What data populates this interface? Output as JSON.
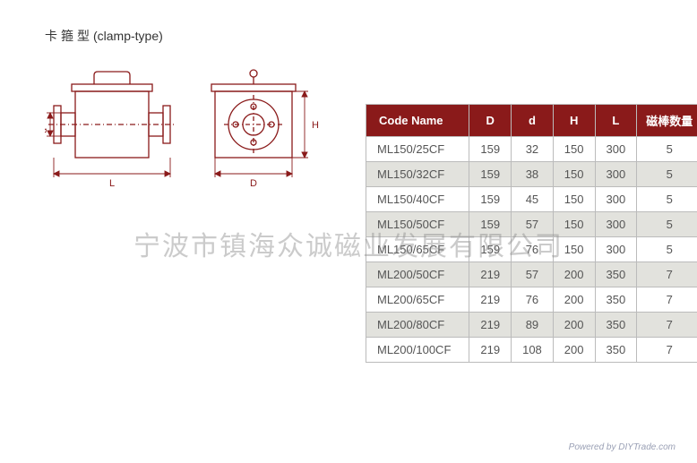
{
  "title": {
    "cn": "卡箍型",
    "en": "(clamp-type)"
  },
  "watermark": "宁波市镇海众诚磁业发展有限公司",
  "footer": {
    "prefix": "Powered by ",
    "brand": "DIYTrade.com"
  },
  "diagram": {
    "stroke": "#8a1a1a",
    "label_color": "#8a1a1a",
    "labels": {
      "L": "L",
      "d": "d",
      "D": "D",
      "H": "H"
    }
  },
  "table": {
    "header_bg": "#8a1a1a",
    "header_fg": "#ffffff",
    "alt_bg": "#e2e2dd",
    "border": "#bbbbbb",
    "columns": [
      {
        "key": "code",
        "label": "Code Name"
      },
      {
        "key": "D",
        "label": "D"
      },
      {
        "key": "d",
        "label": "d"
      },
      {
        "key": "H",
        "label": "H"
      },
      {
        "key": "L",
        "label": "L"
      },
      {
        "key": "bars",
        "label": "磁棒数量"
      }
    ],
    "rows": [
      {
        "code": "ML150/25CF",
        "D": "159",
        "d": "32",
        "H": "150",
        "L": "300",
        "bars": "5"
      },
      {
        "code": "ML150/32CF",
        "D": "159",
        "d": "38",
        "H": "150",
        "L": "300",
        "bars": "5"
      },
      {
        "code": "ML150/40CF",
        "D": "159",
        "d": "45",
        "H": "150",
        "L": "300",
        "bars": "5"
      },
      {
        "code": "ML150/50CF",
        "D": "159",
        "d": "57",
        "H": "150",
        "L": "300",
        "bars": "5"
      },
      {
        "code": "ML150/65CF",
        "D": "159",
        "d": "76",
        "H": "150",
        "L": "300",
        "bars": "5"
      },
      {
        "code": "ML200/50CF",
        "D": "219",
        "d": "57",
        "H": "200",
        "L": "350",
        "bars": "7"
      },
      {
        "code": "ML200/65CF",
        "D": "219",
        "d": "76",
        "H": "200",
        "L": "350",
        "bars": "7"
      },
      {
        "code": "ML200/80CF",
        "D": "219",
        "d": "89",
        "H": "200",
        "L": "350",
        "bars": "7"
      },
      {
        "code": "ML200/100CF",
        "D": "219",
        "d": "108",
        "H": "200",
        "L": "350",
        "bars": "7"
      }
    ]
  }
}
